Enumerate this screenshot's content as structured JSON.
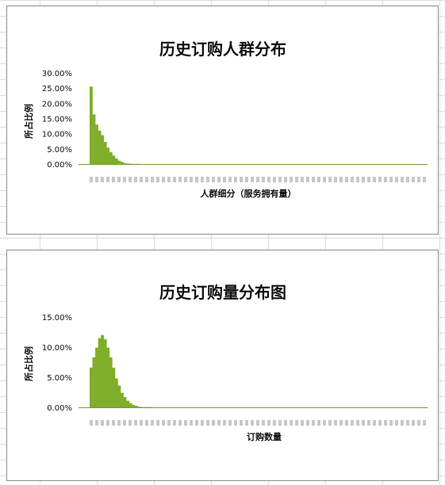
{
  "chart_data": [
    {
      "type": "bar",
      "title": "历史订购人群分布",
      "ylabel": "所占比例",
      "xlabel": "人群细分（服务拥有量）",
      "y_ticks": [
        "30.00%",
        "25.00%",
        "20.00%",
        "15.00%",
        "10.00%",
        "5.00%",
        "0.00%"
      ],
      "ylim": [
        0,
        30
      ],
      "grid": false,
      "legend": "none",
      "bar_color": "#7fae2a",
      "values": [
        25.5,
        16.3,
        13.0,
        11.0,
        9.5,
        7.3,
        5.4,
        3.9,
        2.8,
        1.8,
        1.1,
        0.7,
        0.3,
        0.15,
        0.1,
        0.05,
        0.05,
        0.05,
        0,
        0,
        0,
        0,
        0,
        0,
        0,
        0,
        0,
        0,
        0,
        0,
        0,
        0,
        0,
        0,
        0,
        0,
        0,
        0,
        0,
        0,
        0,
        0,
        0,
        0,
        0,
        0,
        0,
        0,
        0,
        0,
        0,
        0,
        0,
        0,
        0,
        0,
        0,
        0,
        0,
        0,
        0,
        0,
        0,
        0,
        0,
        0,
        0,
        0,
        0,
        0,
        0,
        0,
        0,
        0,
        0,
        0,
        0,
        0,
        0,
        0,
        0,
        0,
        0,
        0,
        0,
        0,
        0,
        0,
        0,
        0,
        0,
        0,
        0,
        0,
        0,
        0,
        0,
        0,
        0,
        0,
        0,
        0,
        0,
        0,
        0,
        0,
        0,
        0,
        0,
        0,
        0,
        0,
        0,
        0,
        0,
        0,
        0,
        0,
        0,
        0
      ]
    },
    {
      "type": "bar",
      "title": "历史订购量分布图",
      "ylabel": "所占比例",
      "xlabel": "订购数量",
      "y_ticks": [
        "15.00%",
        "10.00%",
        "5.00%",
        "0.00%"
      ],
      "ylim": [
        0,
        15
      ],
      "grid": false,
      "legend": "none",
      "bar_color": "#7fae2a",
      "values": [
        6.6,
        8.3,
        9.9,
        11.5,
        12.0,
        11.3,
        9.9,
        8.3,
        6.6,
        4.8,
        3.6,
        2.4,
        1.7,
        1.1,
        0.7,
        0.4,
        0.25,
        0.1,
        0.05,
        0.05,
        0.05,
        0.05,
        0,
        0,
        0,
        0,
        0,
        0,
        0,
        0,
        0,
        0,
        0,
        0,
        0,
        0,
        0,
        0,
        0,
        0,
        0,
        0,
        0,
        0,
        0,
        0,
        0,
        0,
        0,
        0,
        0,
        0,
        0,
        0,
        0,
        0,
        0,
        0,
        0,
        0,
        0,
        0,
        0,
        0,
        0,
        0,
        0,
        0,
        0,
        0,
        0,
        0,
        0,
        0,
        0,
        0,
        0,
        0,
        0,
        0,
        0,
        0,
        0,
        0,
        0,
        0,
        0,
        0,
        0,
        0,
        0,
        0,
        0,
        0,
        0,
        0,
        0,
        0,
        0,
        0,
        0,
        0,
        0,
        0,
        0,
        0,
        0,
        0,
        0,
        0,
        0,
        0,
        0,
        0,
        0,
        0,
        0,
        0,
        0,
        0
      ]
    }
  ]
}
